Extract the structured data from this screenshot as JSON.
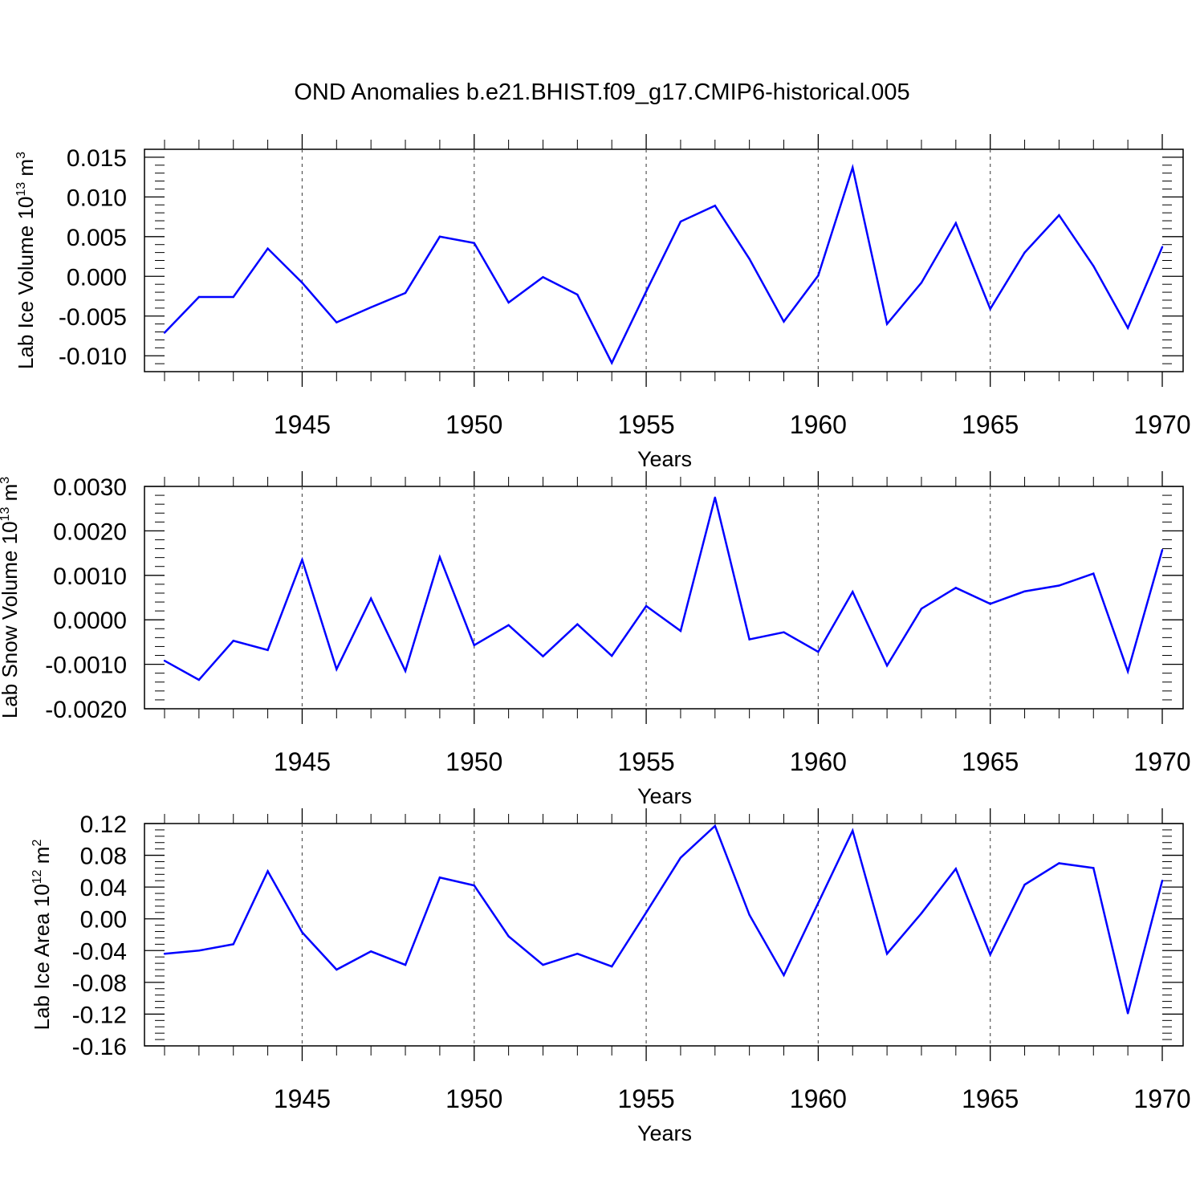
{
  "title": "OND Anomalies b.e21.BHIST.f09_g17.CMIP6-historical.005",
  "line_color": "#0000ff",
  "chart_data": [
    {
      "type": "line",
      "title": "OND Anomalies b.e21.BHIST.f09_g17.CMIP6-historical.005",
      "xlabel": "Years",
      "ylabel": {
        "text": "Lab Ice Volume 10",
        "sup1": "13",
        "mid": " m",
        "sup2": "3"
      },
      "xlim": [
        1941,
        1970
      ],
      "ylim": [
        -0.012,
        0.016
      ],
      "xticks": [
        "1945",
        "1950",
        "1955",
        "1960",
        "1965",
        "1970"
      ],
      "yticks": [
        "-0.010",
        "-0.005",
        "0.000",
        "0.005",
        "0.010",
        "0.015"
      ],
      "ytick_values": [
        -0.01,
        -0.005,
        0.0,
        0.005,
        0.01,
        0.015
      ],
      "grid": "vertical dashed at major x ticks",
      "x": [
        1941,
        1942,
        1943,
        1944,
        1945,
        1946,
        1947,
        1948,
        1949,
        1950,
        1951,
        1952,
        1953,
        1954,
        1955,
        1956,
        1957,
        1958,
        1959,
        1960,
        1961,
        1962,
        1963,
        1964,
        1965,
        1966,
        1967,
        1968,
        1969,
        1970
      ],
      "series": [
        {
          "values": [
            -0.0071,
            -0.0026,
            -0.0026,
            0.0035,
            -0.0008,
            -0.0058,
            -0.0039,
            -0.0021,
            0.005,
            0.0042,
            -0.0033,
            -0.0001,
            -0.0023,
            -0.0109,
            -0.0019,
            0.0069,
            0.0089,
            0.0022,
            -0.0057,
            0.0001,
            0.0137,
            -0.006,
            -0.0008,
            0.0067,
            -0.0041,
            0.003,
            0.0077,
            0.0013,
            -0.0065,
            0.0037
          ]
        }
      ]
    },
    {
      "type": "line",
      "xlabel": "Years",
      "ylabel": {
        "text": "Lab Snow Volume 10",
        "sup1": "13",
        "mid": " m",
        "sup2": "3"
      },
      "xlim": [
        1941,
        1970
      ],
      "ylim": [
        -0.002,
        0.003
      ],
      "xticks": [
        "1945",
        "1950",
        "1955",
        "1960",
        "1965",
        "1970"
      ],
      "yticks": [
        "-0.0020",
        "-0.0010",
        "0.0000",
        "0.0010",
        "0.0020",
        "0.0030"
      ],
      "ytick_values": [
        -0.002,
        -0.001,
        0.0,
        0.001,
        0.002,
        0.003
      ],
      "grid": "vertical dashed at major x ticks",
      "x": [
        1941,
        1942,
        1943,
        1944,
        1945,
        1946,
        1947,
        1948,
        1949,
        1950,
        1951,
        1952,
        1953,
        1954,
        1955,
        1956,
        1957,
        1958,
        1959,
        1960,
        1961,
        1962,
        1963,
        1964,
        1965,
        1966,
        1967,
        1968,
        1969,
        1970
      ],
      "series": [
        {
          "values": [
            -0.00092,
            -0.00135,
            -0.00047,
            -0.00068,
            0.00135,
            -0.00111,
            0.00048,
            -0.00115,
            0.00141,
            -0.00057,
            -0.00012,
            -0.00082,
            -0.0001,
            -0.00081,
            0.00031,
            -0.00025,
            0.00275,
            -0.00044,
            -0.00028,
            -0.00072,
            0.00063,
            -0.00103,
            0.00025,
            0.00072,
            0.00036,
            0.00064,
            0.00077,
            0.00104,
            -0.00116,
            0.00157
          ]
        }
      ]
    },
    {
      "type": "line",
      "xlabel": "Years",
      "ylabel": {
        "text": "Lab Ice Area 10",
        "sup1": "12",
        "mid": " m",
        "sup2": "2"
      },
      "xlim": [
        1941,
        1970
      ],
      "ylim": [
        -0.16,
        0.12
      ],
      "xticks": [
        "1945",
        "1950",
        "1955",
        "1960",
        "1965",
        "1970"
      ],
      "yticks": [
        "-0.16",
        "-0.12",
        "-0.08",
        "-0.04",
        "0.00",
        "0.04",
        "0.08",
        "0.12"
      ],
      "ytick_values": [
        -0.16,
        -0.12,
        -0.08,
        -0.04,
        0.0,
        0.04,
        0.08,
        0.12
      ],
      "grid": "vertical dashed at major x ticks",
      "x": [
        1941,
        1942,
        1943,
        1944,
        1945,
        1946,
        1947,
        1948,
        1949,
        1950,
        1951,
        1952,
        1953,
        1954,
        1955,
        1956,
        1957,
        1958,
        1959,
        1960,
        1961,
        1962,
        1963,
        1964,
        1965,
        1966,
        1967,
        1968,
        1969,
        1970
      ],
      "series": [
        {
          "values": [
            -0.044,
            -0.04,
            -0.032,
            0.06,
            -0.017,
            -0.064,
            -0.041,
            -0.058,
            0.052,
            0.042,
            -0.022,
            -0.058,
            -0.044,
            -0.06,
            0.008,
            0.077,
            0.117,
            0.005,
            -0.071,
            0.02,
            0.111,
            -0.044,
            0.007,
            0.063,
            -0.045,
            0.043,
            0.07,
            0.064,
            -0.119,
            0.048
          ]
        }
      ]
    }
  ]
}
